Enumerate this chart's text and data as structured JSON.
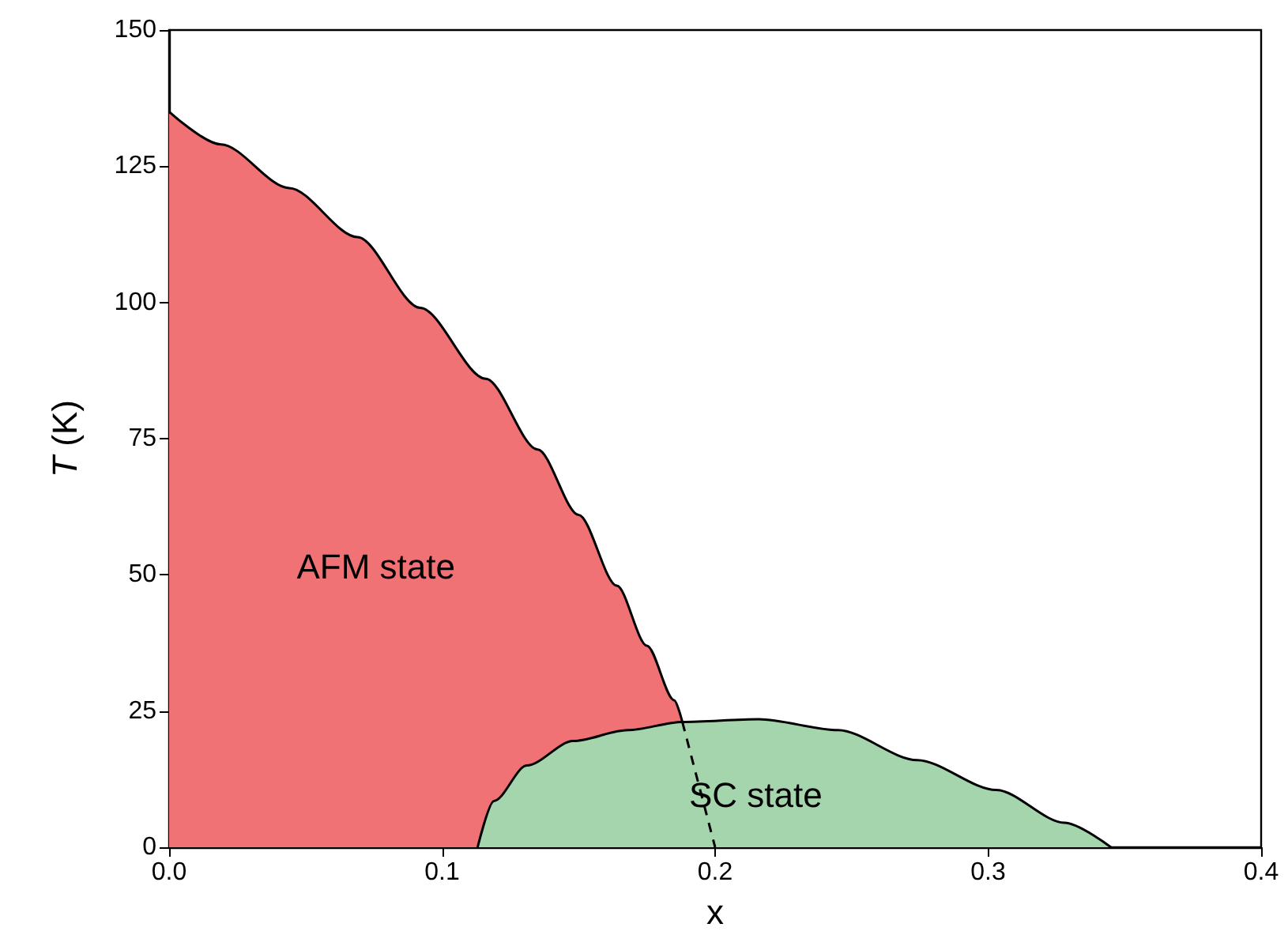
{
  "chart_data": {
    "type": "area",
    "xlabel": "x",
    "ylabel": "T (K)",
    "xlim": [
      0,
      0.4
    ],
    "xticks": [
      {
        "value": 0,
        "label": "0.0"
      },
      0.1,
      0.2,
      0.3,
      0.4
    ],
    "ylim": [
      0,
      150
    ],
    "yticks": [
      0,
      25,
      50,
      75,
      100,
      125,
      150
    ],
    "grid": false,
    "series": [
      {
        "name": "AFM state",
        "color": "#f07274",
        "x": [
          0,
          0.019,
          0.044,
          0.069,
          0.092,
          0.116,
          0.135,
          0.15,
          0.164,
          0.175,
          0.185,
          0.188
        ],
        "values": [
          135,
          129,
          121,
          112,
          99,
          86,
          73,
          61,
          48,
          37,
          27,
          23
        ]
      },
      {
        "name": "SC state",
        "color": "#a5d5ad",
        "x": [
          0.113,
          0.119,
          0.131,
          0.148,
          0.168,
          0.188,
          0.216,
          0.245,
          0.274,
          0.303,
          0.328,
          0.345
        ],
        "values": [
          0,
          8.5,
          15,
          19.5,
          21.5,
          23,
          23.5,
          21.5,
          16,
          10.5,
          4.5,
          0
        ]
      },
      {
        "type": "line",
        "color": "#000000",
        "line_style": "dashed",
        "x": [
          0.188,
          0.2
        ],
        "values": [
          23,
          0
        ]
      }
    ]
  }
}
